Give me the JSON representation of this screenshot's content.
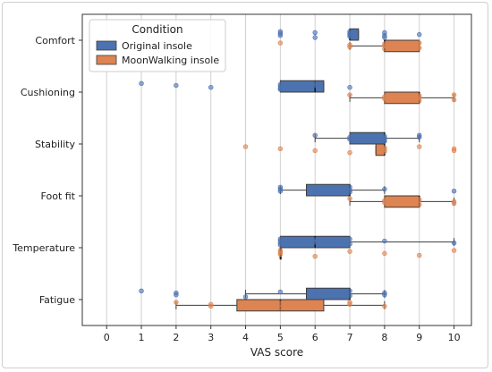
{
  "chart_data": {
    "type": "box",
    "orientation": "horizontal",
    "xlabel": "VAS score",
    "ylabel": "",
    "xlim": [
      -0.7,
      10.5
    ],
    "xticks": [
      0,
      1,
      2,
      3,
      4,
      5,
      6,
      7,
      8,
      9,
      10
    ],
    "categories": [
      "Comfort",
      "Cushioning",
      "Stability",
      "Foot fit",
      "Temperature",
      "Fatigue"
    ],
    "grid": "vertical",
    "legend": {
      "title": "Condition",
      "placement": "top-left",
      "entries": [
        "Original insole",
        "MoonWalking insole"
      ]
    },
    "series": [
      {
        "name": "Original insole",
        "color": "#4C72B0",
        "boxes": [
          {
            "category": "Comfort",
            "min": 7,
            "q1": 7,
            "median": 7,
            "q3": 7.25,
            "max": 7.25,
            "points": [
              5,
              5,
              5,
              6,
              6,
              7,
              7,
              7,
              7,
              8,
              8,
              8,
              9
            ]
          },
          {
            "category": "Cushioning",
            "min": 5,
            "q1": 5,
            "median": 6,
            "q3": 6.25,
            "max": 6.25,
            "points": [
              1,
              2,
              3,
              5,
              5,
              5,
              5,
              6,
              6,
              7
            ]
          },
          {
            "category": "Stability",
            "min": 6,
            "q1": 7,
            "median": 8,
            "q3": 8,
            "max": 9,
            "points": [
              6,
              7,
              7,
              8,
              8,
              8,
              8,
              9,
              9
            ]
          },
          {
            "category": "Foot fit",
            "min": 5,
            "q1": 5.75,
            "median": 7,
            "q3": 7,
            "max": 8,
            "points": [
              5,
              5,
              5,
              6,
              6,
              7,
              7,
              7,
              8,
              10
            ]
          },
          {
            "category": "Temperature",
            "min": 5,
            "q1": 5,
            "median": 6,
            "q3": 7,
            "max": 10,
            "points": [
              5,
              5,
              5,
              5,
              6,
              6,
              7,
              7,
              8,
              10
            ]
          },
          {
            "category": "Fatigue",
            "min": 4,
            "q1": 5.75,
            "median": 7,
            "q3": 7,
            "max": 8,
            "points": [
              1,
              2,
              2,
              4,
              5,
              6,
              7,
              7,
              8,
              8
            ]
          }
        ]
      },
      {
        "name": "MoonWalking insole",
        "color": "#DD8452",
        "boxes": [
          {
            "category": "Comfort",
            "min": 7,
            "q1": 8,
            "median": 8,
            "q3": 9,
            "max": 9,
            "points": [
              5,
              7,
              7,
              8,
              8,
              8,
              9,
              9
            ]
          },
          {
            "category": "Cushioning",
            "min": 7,
            "q1": 8,
            "median": 9,
            "q3": 9,
            "max": 10,
            "points": [
              7,
              8,
              8,
              9,
              9,
              9,
              10,
              10
            ]
          },
          {
            "category": "Stability",
            "min": 7.75,
            "q1": 7.75,
            "median": 8,
            "q3": 8,
            "max": 8,
            "points": [
              4,
              5,
              6,
              7,
              8,
              8,
              8,
              9,
              10,
              10
            ]
          },
          {
            "category": "Foot fit",
            "min": 7,
            "q1": 8,
            "median": 9,
            "q3": 9,
            "max": 10,
            "points": [
              7,
              8,
              8,
              9,
              9,
              10,
              10
            ]
          },
          {
            "category": "Temperature",
            "min": 5,
            "q1": 5,
            "median": 5,
            "q3": 5,
            "max": 5,
            "points": [
              5,
              5,
              5,
              6,
              7,
              8,
              9,
              10
            ]
          },
          {
            "category": "Fatigue",
            "min": 2,
            "q1": 3.75,
            "median": 5,
            "q3": 6.25,
            "max": 8,
            "points": [
              2,
              3,
              3,
              5,
              5,
              6,
              6,
              7,
              7,
              8
            ]
          }
        ]
      }
    ]
  }
}
